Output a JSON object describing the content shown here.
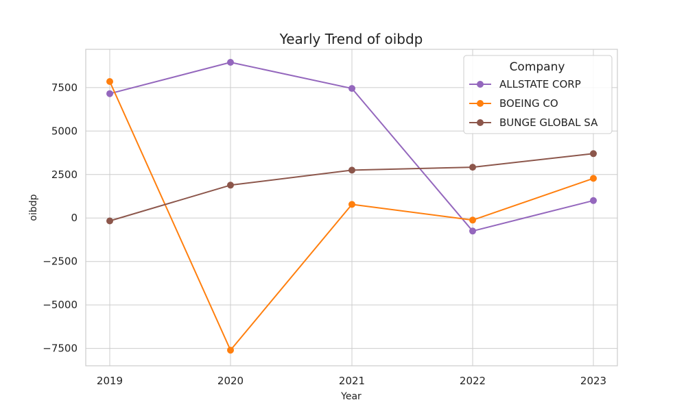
{
  "chart_data": {
    "type": "line",
    "title": "Yearly Trend of oibdp",
    "xlabel": "Year",
    "ylabel": "oibdp",
    "categories": [
      "2019",
      "2020",
      "2021",
      "2022",
      "2023"
    ],
    "ylim": [
      -8500,
      9700
    ],
    "yticks": [
      -7500,
      -5000,
      -2500,
      0,
      2500,
      5000,
      7500
    ],
    "ytick_labels": [
      "−7500",
      "−5000",
      "−2500",
      "0",
      "2500",
      "5000",
      "7500"
    ],
    "grid": true,
    "legend": {
      "title": "Company",
      "placement": "top-right"
    },
    "series": [
      {
        "name": "ALLSTATE CORP",
        "color": "#9467bd",
        "values": [
          7150,
          8950,
          7450,
          -750,
          1000
        ]
      },
      {
        "name": "BOEING CO",
        "color": "#ff7f0e",
        "values": [
          7850,
          -7600,
          780,
          -120,
          2280
        ]
      },
      {
        "name": "BUNGE GLOBAL SA",
        "color": "#8c564b",
        "values": [
          -170,
          1890,
          2750,
          2920,
          3700
        ]
      }
    ]
  }
}
